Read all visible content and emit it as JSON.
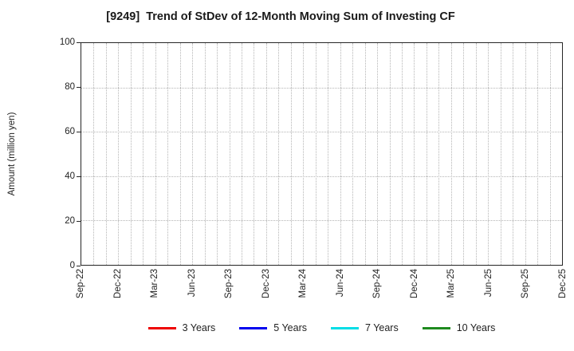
{
  "chart_data": {
    "type": "line",
    "title": "[9249]  Trend of StDev of 12-Month Moving Sum of Investing CF",
    "ylabel": "Amount (million yen)",
    "ylim": [
      0,
      100
    ],
    "yticks": [
      0,
      20,
      40,
      60,
      80,
      100
    ],
    "x_tick_labels": [
      "Sep-22",
      "Dec-22",
      "Mar-23",
      "Jun-23",
      "Sep-23",
      "Dec-23",
      "Mar-24",
      "Jun-24",
      "Sep-24",
      "Dec-24",
      "Mar-25",
      "Jun-25",
      "Sep-25",
      "Dec-25"
    ],
    "x_total_months": 40,
    "months_per_label": 3,
    "grid": "dotted",
    "legend_position": "bottom-center",
    "series": [
      {
        "name": "3 Years",
        "color": "#ee0000",
        "values": []
      },
      {
        "name": "5 Years",
        "color": "#0000ee",
        "values": []
      },
      {
        "name": "7 Years",
        "color": "#00dde6",
        "values": []
      },
      {
        "name": "10 Years",
        "color": "#1e8a1e",
        "values": []
      }
    ],
    "note": "Plot area is empty; no data points are drawn for any series."
  },
  "colors": {
    "grid": "#b5b5b5",
    "axis": "#262626",
    "text": "#222222"
  }
}
